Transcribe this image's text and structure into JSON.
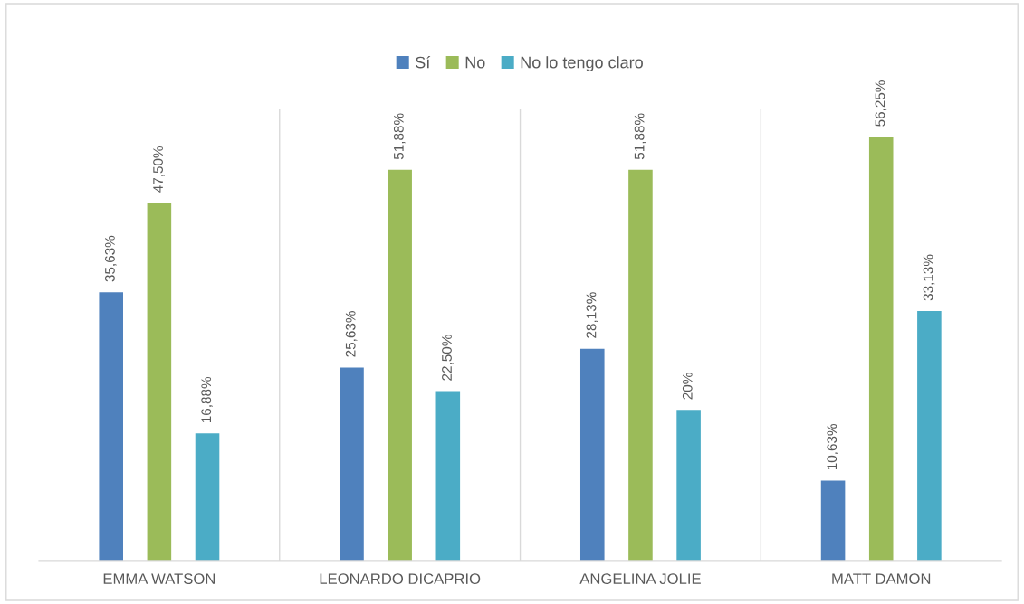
{
  "chart_data": {
    "type": "bar",
    "categories": [
      "EMMA WATSON",
      "LEONARDO DICAPRIO",
      "ANGELINA JOLIE",
      "MATT DAMON"
    ],
    "series": [
      {
        "name": "Sí",
        "color": "#4f81bd",
        "values": [
          35.63,
          25.63,
          28.13,
          10.63
        ],
        "value_labels": [
          "35,63%",
          "25,63%",
          "28,13%",
          "10,63%"
        ]
      },
      {
        "name": "No",
        "color": "#9bbb59",
        "values": [
          47.5,
          51.88,
          51.88,
          56.25
        ],
        "value_labels": [
          "47,50%",
          "51,88%",
          "51,88%",
          "56,25%"
        ]
      },
      {
        "name": "No lo tengo claro",
        "color": "#4bacc6",
        "values": [
          16.88,
          22.5,
          20,
          33.13
        ],
        "value_labels": [
          "16,88%",
          "22,50%",
          "20%",
          "33,13%"
        ]
      }
    ],
    "ylim": [
      0,
      60
    ],
    "tick_labels": "x",
    "grid": "x",
    "legend": "top"
  }
}
